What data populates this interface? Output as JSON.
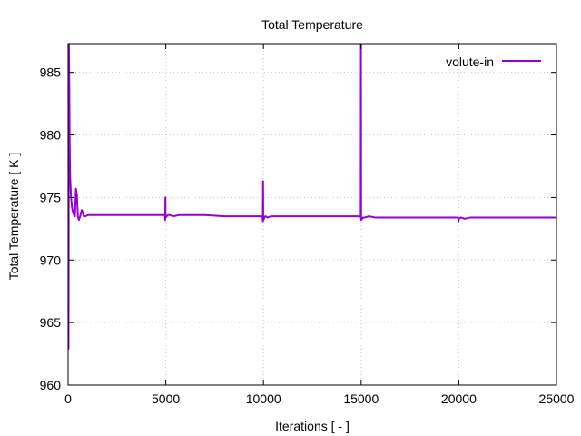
{
  "chart_data": {
    "type": "line",
    "title": "Total Temperature",
    "xlabel": "Iterations [ - ]",
    "ylabel": "Total Temperature [ K ]",
    "xlim": [
      0,
      25000
    ],
    "ylim": [
      960,
      987.3
    ],
    "xticks": [
      0,
      5000,
      10000,
      15000,
      20000,
      25000
    ],
    "xtick_labels": [
      "0",
      "5000",
      "10000",
      "15000",
      "20000",
      "25000"
    ],
    "yticks": [
      960,
      965,
      970,
      975,
      980,
      985
    ],
    "ytick_labels": [
      "960",
      "965",
      "970",
      "975",
      "980",
      "985"
    ],
    "grid": true,
    "legend": "top-right",
    "colors": {
      "series": "#9400d3",
      "grid": "#c8c8c8",
      "axis": "#000000"
    },
    "series": [
      {
        "name": "volute-in",
        "x": [
          0,
          20,
          40,
          60,
          80,
          100,
          150,
          200,
          250,
          300,
          350,
          400,
          450,
          500,
          550,
          600,
          650,
          700,
          750,
          800,
          900,
          1000,
          1200,
          1500,
          2000,
          3000,
          4000,
          4950,
          4970,
          4980,
          4990,
          5000,
          5050,
          5100,
          5200,
          5400,
          5700,
          6000,
          7000,
          8000,
          9000,
          9950,
          9970,
          9980,
          9990,
          10000,
          10050,
          10100,
          10200,
          10400,
          10700,
          11000,
          12000,
          13000,
          14000,
          14970,
          14980,
          14990,
          15000,
          15050,
          15100,
          15200,
          15400,
          15700,
          16000,
          17000,
          18000,
          19000,
          19970,
          19990,
          20000,
          20100,
          20300,
          20600,
          21000,
          22000,
          23000,
          24000,
          25000
        ],
        "y": [
          987.3,
          962.9,
          987.3,
          984.0,
          979.5,
          976.8,
          975.0,
          974.2,
          973.8,
          973.6,
          973.5,
          975.7,
          975.2,
          973.5,
          973.2,
          973.4,
          973.7,
          974.0,
          973.8,
          973.5,
          973.5,
          973.6,
          973.6,
          973.6,
          973.6,
          973.6,
          973.6,
          973.6,
          973.2,
          975.0,
          973.6,
          973.4,
          973.5,
          973.6,
          973.6,
          973.5,
          973.6,
          973.6,
          973.6,
          973.5,
          973.5,
          973.5,
          973.1,
          976.3,
          973.3,
          973.2,
          973.4,
          973.5,
          973.4,
          973.5,
          973.5,
          973.5,
          973.5,
          973.5,
          973.5,
          973.5,
          973.4,
          987.3,
          973.2,
          973.3,
          973.4,
          973.4,
          973.5,
          973.4,
          973.4,
          973.4,
          973.4,
          973.4,
          973.4,
          973.1,
          973.3,
          973.4,
          973.3,
          973.4,
          973.4,
          973.4,
          973.4,
          973.4,
          973.4
        ]
      }
    ]
  }
}
